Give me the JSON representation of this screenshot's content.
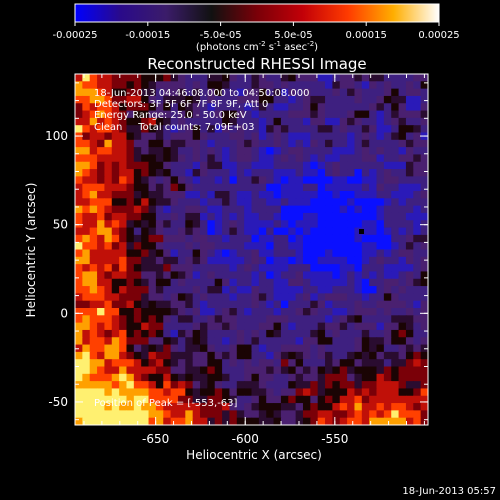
{
  "colorbar": {
    "ticks": [
      "-0.00025",
      "-0.00015",
      "-5.0e-05",
      "5.0e-05",
      "0.00015",
      "0.00025"
    ],
    "units_text": "(photons cm",
    "units_sup1": "-2",
    "units_mid": " s",
    "units_sup2": "-1",
    "units_tail": " asec",
    "units_sup3": "-2",
    "units_close": ")",
    "stops": [
      "#0000ff",
      "#2a0a8a",
      "#3b1c6a",
      "#111111",
      "#7a0008",
      "#c20008",
      "#ff3b00",
      "#ffae00",
      "#ffffff"
    ]
  },
  "title": "Reconstructed RHESSI Image",
  "annotation": {
    "time_range": "18-Jun-2013 04:46:08.000 to 04:50:08.000",
    "detectors": "Detectors: 3F 5F 6F 7F 8F 9F, Att 0",
    "energy": "Energy Range: 25.0 - 50.0 keV",
    "algorithm": "Clean     Total counts: 7.09E+03",
    "peak": "Position of Peak = [-553,-63]"
  },
  "axes": {
    "xlabel": "Heliocentric X (arcsec)",
    "ylabel": "Heliocentric Y (arcsec)",
    "xticks": [
      "-650",
      "-600",
      "-550"
    ],
    "yticks": [
      "-50",
      "0",
      "50",
      "100"
    ],
    "xrange": [
      -695,
      -498
    ],
    "yrange": [
      -63,
      135
    ]
  },
  "footer": {
    "timestamp": "18-Jun-2013 05:57"
  }
}
